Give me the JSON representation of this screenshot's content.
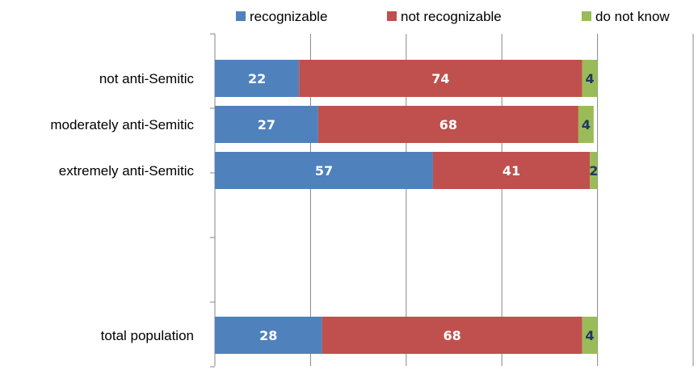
{
  "chart_data": {
    "type": "bar",
    "orientation": "horizontal",
    "stacked": true,
    "categories": [
      "not anti-Semitic",
      "moderately anti-Semitic",
      "extremely anti-Semitic",
      "",
      "total population"
    ],
    "series": [
      {
        "name": "recognizable",
        "color": "#4f81bd",
        "values": [
          22,
          27,
          57,
          null,
          28
        ]
      },
      {
        "name": "not recognizable",
        "color": "#c0504d",
        "values": [
          74,
          68,
          41,
          null,
          68
        ]
      },
      {
        "name": "do not know",
        "color": "#9bbb59",
        "values": [
          4,
          4,
          2,
          null,
          4
        ]
      }
    ],
    "xlim": [
      0,
      100
    ],
    "grid": true,
    "legend_position": "top",
    "title": "",
    "xlabel": "",
    "ylabel": ""
  }
}
